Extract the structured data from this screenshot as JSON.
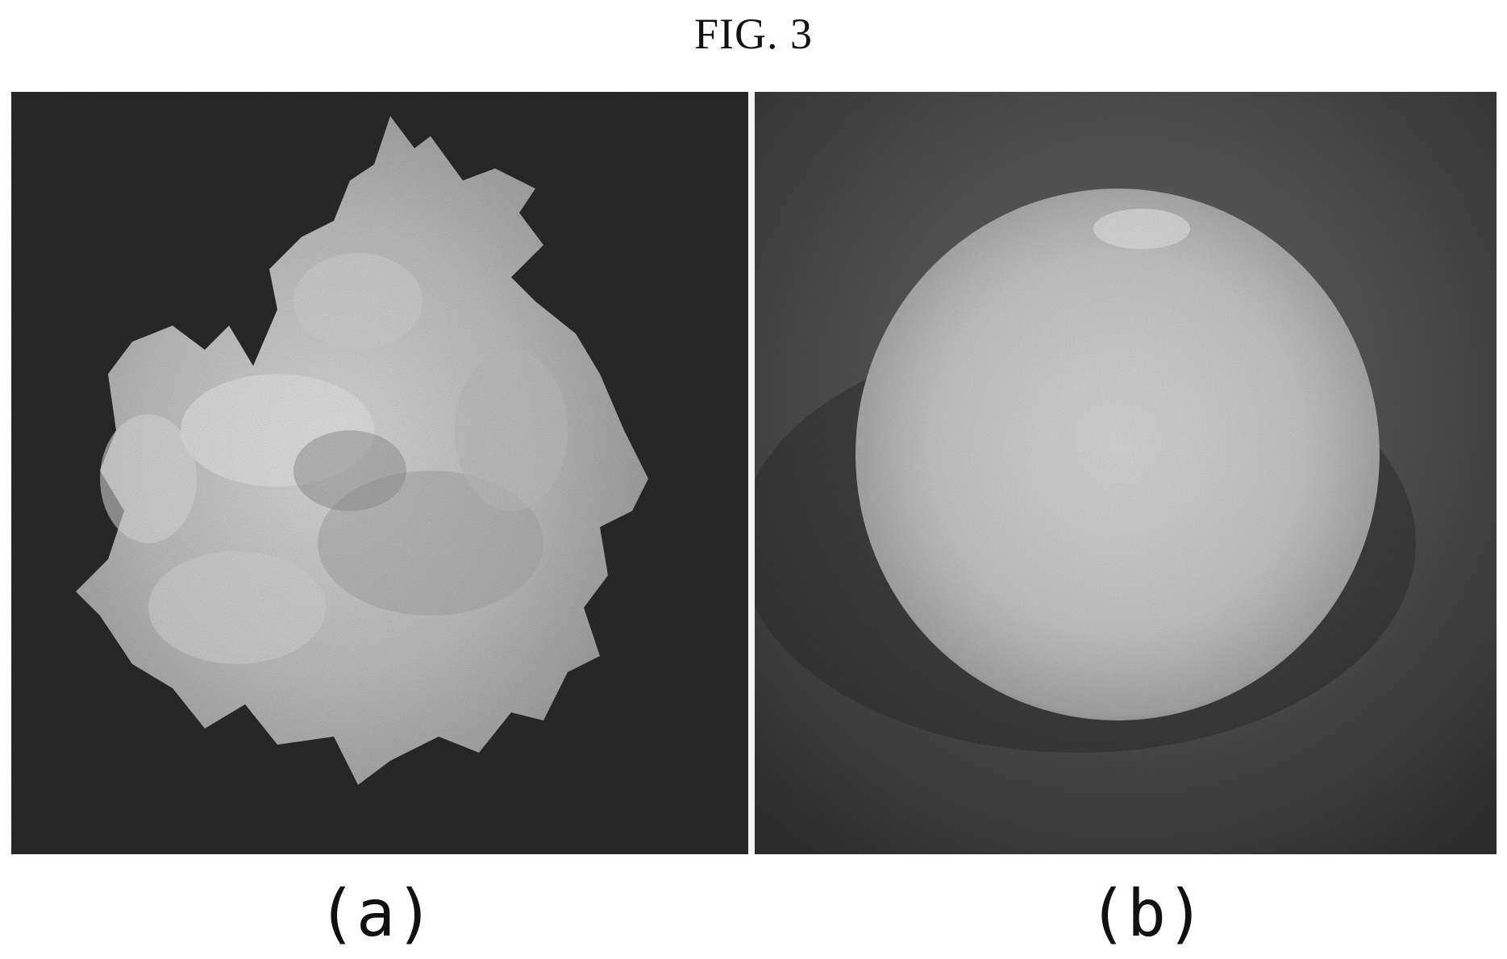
{
  "figure": {
    "title": "FIG. 3",
    "panels": [
      {
        "label": "(a)",
        "icon": "irregular-crystal-aggregate-photo"
      },
      {
        "label": "(b)",
        "icon": "spherical-particle-photo"
      }
    ],
    "colors": {
      "background_dark": "#202020",
      "particle_light": "#d8d8d8"
    }
  }
}
